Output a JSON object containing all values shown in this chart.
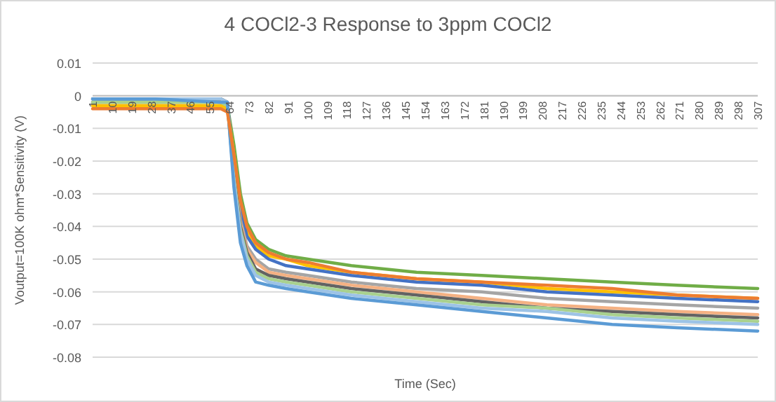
{
  "chart_data": {
    "type": "line",
    "title": "4 COCl2-3 Response to 3ppm COCl2",
    "xlabel": "Time (Sec)",
    "ylabel": "Voutput=100K ohm*Sensitivity (V)",
    "x": [
      1,
      30,
      60,
      63,
      66,
      69,
      72,
      76,
      82,
      90,
      100,
      120,
      150,
      180,
      210,
      240,
      270,
      307
    ],
    "xlim": [
      1,
      307
    ],
    "xticks": [
      1,
      10,
      19,
      28,
      37,
      46,
      55,
      64,
      73,
      82,
      91,
      100,
      109,
      118,
      127,
      136,
      145,
      154,
      163,
      172,
      181,
      190,
      199,
      208,
      217,
      226,
      235,
      244,
      253,
      262,
      271,
      280,
      289,
      298,
      307
    ],
    "ylim": [
      -0.08,
      0.01
    ],
    "yticks": [
      0.01,
      0,
      -0.01,
      -0.02,
      -0.03,
      -0.04,
      -0.05,
      -0.06,
      -0.07,
      -0.08
    ],
    "grid": "y",
    "marker": "none",
    "line_style": "solid",
    "series": [
      {
        "color": "#70ad47",
        "values": [
          -0.002,
          -0.002,
          -0.002,
          -0.003,
          -0.015,
          -0.03,
          -0.039,
          -0.044,
          -0.047,
          -0.049,
          -0.05,
          -0.052,
          -0.054,
          -0.055,
          -0.056,
          -0.057,
          -0.058,
          -0.059
        ]
      },
      {
        "color": "#ffc000",
        "values": [
          -0.003,
          -0.003,
          -0.003,
          -0.004,
          -0.018,
          -0.033,
          -0.041,
          -0.046,
          -0.049,
          -0.05,
          -0.052,
          -0.054,
          -0.056,
          -0.057,
          -0.059,
          -0.06,
          -0.061,
          -0.062
        ]
      },
      {
        "color": "#4472c4",
        "values": [
          -0.002,
          -0.001,
          -0.002,
          -0.003,
          -0.02,
          -0.035,
          -0.043,
          -0.047,
          -0.05,
          -0.052,
          -0.053,
          -0.055,
          -0.057,
          -0.058,
          -0.06,
          -0.061,
          -0.062,
          -0.063
        ]
      },
      {
        "color": "#a5a5a5",
        "values": [
          -0.001,
          -0.001,
          -0.001,
          -0.002,
          -0.022,
          -0.038,
          -0.046,
          -0.05,
          -0.053,
          -0.054,
          -0.055,
          -0.057,
          -0.059,
          -0.06,
          -0.062,
          -0.063,
          -0.064,
          -0.065
        ]
      },
      {
        "color": "#f4b183",
        "values": [
          -0.002,
          -0.002,
          -0.002,
          -0.003,
          -0.023,
          -0.039,
          -0.047,
          -0.051,
          -0.054,
          -0.055,
          -0.056,
          -0.058,
          -0.06,
          -0.062,
          -0.064,
          -0.065,
          -0.066,
          -0.067
        ]
      },
      {
        "color": "#636363",
        "values": [
          -0.001,
          -0.002,
          -0.001,
          -0.002,
          -0.024,
          -0.04,
          -0.048,
          -0.053,
          -0.055,
          -0.056,
          -0.057,
          -0.059,
          -0.061,
          -0.063,
          -0.065,
          -0.066,
          -0.067,
          -0.068
        ]
      },
      {
        "color": "#a9d18e",
        "values": [
          -0.002,
          -0.002,
          -0.002,
          -0.003,
          -0.025,
          -0.041,
          -0.049,
          -0.054,
          -0.056,
          -0.057,
          -0.058,
          -0.06,
          -0.062,
          -0.064,
          -0.065,
          -0.067,
          -0.068,
          -0.069
        ]
      },
      {
        "color": "#9dc3e6",
        "values": [
          -0.001,
          -0.001,
          -0.001,
          -0.002,
          -0.026,
          -0.042,
          -0.05,
          -0.055,
          -0.057,
          -0.058,
          -0.059,
          -0.061,
          -0.063,
          -0.065,
          -0.066,
          -0.068,
          -0.069,
          -0.07
        ]
      },
      {
        "color": "#5b9bd5",
        "values": [
          -0.001,
          -0.001,
          -0.002,
          -0.002,
          -0.028,
          -0.045,
          -0.052,
          -0.057,
          -0.058,
          -0.059,
          -0.06,
          -0.062,
          -0.064,
          -0.066,
          -0.068,
          -0.07,
          -0.071,
          -0.072
        ]
      },
      {
        "color": "#ed7d31",
        "values": [
          -0.004,
          -0.004,
          -0.004,
          -0.005,
          -0.018,
          -0.032,
          -0.04,
          -0.045,
          -0.048,
          -0.05,
          -0.051,
          -0.054,
          -0.056,
          -0.057,
          -0.058,
          -0.059,
          -0.061,
          -0.062
        ]
      }
    ]
  }
}
